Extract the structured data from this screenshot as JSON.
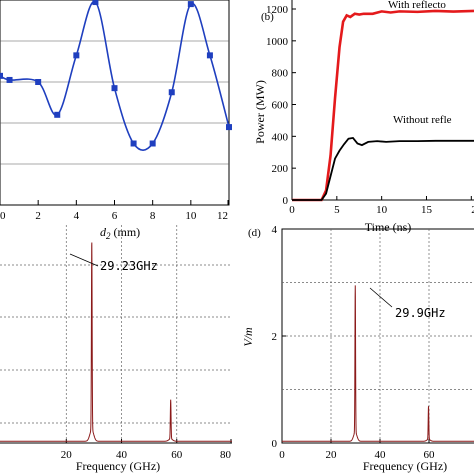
{
  "chart_data": [
    {
      "panel": "a",
      "type": "line",
      "xlabel_main": "d",
      "xlabel_sub": "2",
      "xlabel_unit": " (mm)",
      "xlim": [
        0,
        12
      ],
      "ylim": [
        0,
        1
      ],
      "x_ticks": [
        0,
        2,
        4,
        6,
        8,
        10,
        12
      ],
      "x_tick_labels": [
        "0",
        "2",
        "4",
        "6",
        "8",
        "10",
        "12"
      ],
      "series": [
        {
          "color": "#1f3fbf",
          "marker": "square",
          "x": [
            0,
            0.5,
            2,
            3,
            4,
            5,
            6,
            7,
            8,
            9,
            10,
            11,
            12
          ],
          "y": [
            0.63,
            0.61,
            0.6,
            0.44,
            0.73,
            0.99,
            0.57,
            0.3,
            0.3,
            0.55,
            0.98,
            0.73,
            0.38
          ]
        }
      ]
    },
    {
      "panel": "b",
      "type": "line",
      "label": "(b)",
      "xlabel": "Time (ns)",
      "ylabel": "Power (MW)",
      "xlim": [
        0,
        20.3
      ],
      "ylim": [
        0,
        1200
      ],
      "x_ticks": [
        0,
        5,
        10,
        15,
        20
      ],
      "x_tick_labels": [
        "0",
        "5",
        "10",
        "15",
        "20"
      ],
      "y_ticks": [
        0,
        200,
        400,
        600,
        800,
        1000,
        1200
      ],
      "y_tick_labels": [
        "0",
        "200",
        "400",
        "600",
        "800",
        "1000",
        "1200"
      ],
      "series": [
        {
          "name": "With reflecto",
          "color": "#e41a1c",
          "x": [
            0,
            3.3,
            3.8,
            4.3,
            4.8,
            5.3,
            5.7,
            6.1,
            6.5,
            7.0,
            7.5,
            8.0,
            9.0,
            10.0,
            11.0,
            12.0,
            14.0,
            16.0,
            18.0,
            20.3
          ],
          "y": [
            0,
            0,
            60,
            280,
            640,
            960,
            1120,
            1160,
            1150,
            1170,
            1165,
            1170,
            1170,
            1185,
            1178,
            1185,
            1182,
            1188,
            1184,
            1188
          ]
        },
        {
          "name": "Without refle",
          "color": "#000000",
          "x": [
            0,
            3.3,
            3.8,
            4.3,
            4.8,
            5.3,
            5.8,
            6.3,
            6.8,
            7.3,
            7.8,
            8.5,
            9.5,
            10.5,
            12.0,
            14.0,
            16.0,
            18.0,
            20.3
          ],
          "y": [
            0,
            0,
            40,
            150,
            260,
            310,
            350,
            385,
            390,
            355,
            345,
            365,
            370,
            365,
            370,
            370,
            372,
            372,
            372
          ]
        }
      ]
    },
    {
      "panel": "c",
      "type": "line",
      "xlabel": "Frequency (GHz)",
      "xlim": [
        -4,
        80
      ],
      "ylim": [
        0,
        1
      ],
      "x_ticks": [
        20,
        40,
        60,
        80
      ],
      "x_tick_labels": [
        "20",
        "40",
        "60",
        "80"
      ],
      "annotation": "29.23GHz",
      "peaks": [
        {
          "x": 29.23,
          "y": 0.87
        },
        {
          "x": 57.8,
          "y": 0.18
        }
      ],
      "color": "#8b1a1a"
    },
    {
      "panel": "d",
      "type": "line",
      "label": "(d)",
      "xlabel": "Frequency (GHz)",
      "ylabel": "V/m",
      "xlim": [
        0,
        80
      ],
      "ylim": [
        0,
        4
      ],
      "x_ticks": [
        0,
        20,
        40,
        60
      ],
      "x_tick_labels": [
        "0",
        "20",
        "40",
        "60"
      ],
      "y_ticks": [
        0,
        2,
        4
      ],
      "y_tick_labels": [
        "0",
        "2",
        "4"
      ],
      "annotation": "29.9GHz",
      "peaks": [
        {
          "x": 29.9,
          "y": 2.75
        },
        {
          "x": 59.8,
          "y": 0.62
        }
      ],
      "color": "#8b1a1a"
    }
  ]
}
